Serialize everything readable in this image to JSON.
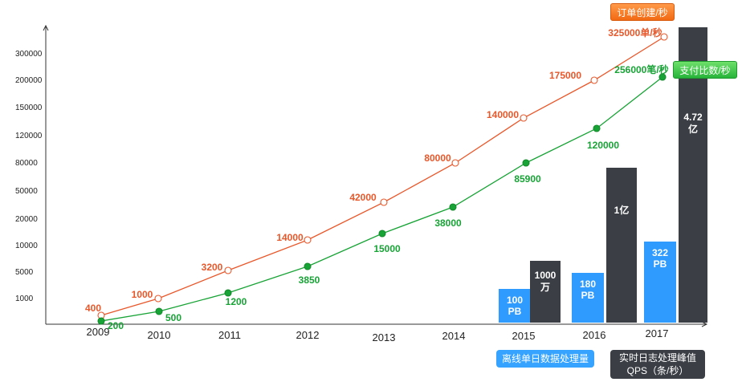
{
  "chart_data": {
    "type": "line+bar",
    "years": [
      "2009",
      "2010",
      "2011",
      "2012",
      "2013",
      "2014",
      "2015",
      "2016",
      "2017"
    ],
    "y_ticks": [
      "1000",
      "5000",
      "10000",
      "20000",
      "50000",
      "80000",
      "120000",
      "150000",
      "200000",
      "300000"
    ],
    "series": [
      {
        "name": "订单创建/秒",
        "color": "#e8572a",
        "values": [
          400,
          1000,
          3200,
          14000,
          42000,
          80000,
          140000,
          175000,
          325000
        ],
        "labels": [
          "400",
          "1000",
          "3200",
          "14000",
          "42000",
          "80000",
          "140000",
          "175000",
          "325000单/秒"
        ]
      },
      {
        "name": "支付比数/秒",
        "color": "#17a335",
        "values": [
          200,
          500,
          1200,
          3850,
          15000,
          38000,
          85900,
          120000,
          256000
        ],
        "labels": [
          "200",
          "500",
          "1200",
          "3850",
          "15000",
          "38000",
          "85900",
          "120000",
          "256000笔/秒"
        ]
      }
    ],
    "bars": [
      {
        "name": "离线单日数据处理量",
        "color": "#2f9bff",
        "data": [
          {
            "year": "2015",
            "value_pb": 100,
            "label": [
              "100",
              "PB"
            ]
          },
          {
            "year": "2016",
            "value_pb": 180,
            "label": [
              "180",
              "PB"
            ]
          },
          {
            "year": "2017",
            "value_pb": 322,
            "label": [
              "322",
              "PB"
            ]
          }
        ]
      },
      {
        "name": "实时日志处理峰值QPS（条/秒）",
        "color": "#3b3f45",
        "data": [
          {
            "year": "2015",
            "value": 10000000,
            "label": [
              "1000",
              "万"
            ]
          },
          {
            "year": "2016",
            "value": 100000000,
            "label": [
              "1亿"
            ]
          },
          {
            "year": "2017",
            "value": 472000000,
            "label": [
              "4.72",
              "亿"
            ]
          }
        ]
      }
    ]
  },
  "badges": {
    "order": "订单创建/秒",
    "pay": "支付比数/秒"
  },
  "legend": {
    "offline": "离线单日数据处理量",
    "realtime_line1": "实时日志处理峰值",
    "realtime_line2": "QPS（条/秒）"
  }
}
